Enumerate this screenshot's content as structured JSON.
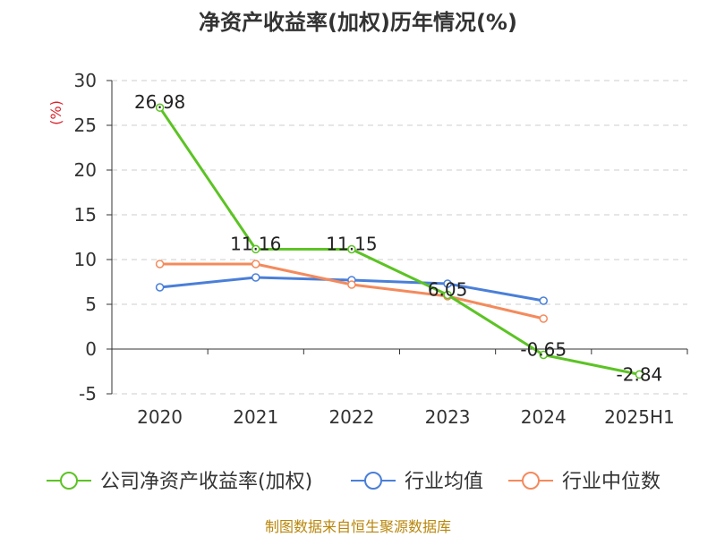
{
  "chart_data": {
    "type": "line",
    "title": "净资产收益率(加权)历年情况(%)",
    "y_unit": "(%)",
    "categories": [
      "2020",
      "2021",
      "2022",
      "2023",
      "2024",
      "2025H1"
    ],
    "ylim": [
      -5,
      30
    ],
    "yticks": [
      30,
      25,
      20,
      15,
      10,
      5,
      0,
      -5
    ],
    "grid": true,
    "legend_position": "bottom",
    "series": [
      {
        "name": "公司净资产收益率(加权)",
        "color": "#5cc324",
        "values": [
          26.98,
          11.16,
          11.15,
          6.05,
          -0.65,
          -2.84
        ],
        "labels": [
          "26.98",
          "11.16",
          "11.15",
          "6.05",
          "-0.65",
          "-2.84"
        ]
      },
      {
        "name": "行业均值",
        "color": "#4a7fd8",
        "values": [
          6.9,
          8.0,
          7.7,
          7.3,
          5.4,
          null
        ]
      },
      {
        "name": "行业中位数",
        "color": "#f48a5c",
        "values": [
          9.5,
          9.5,
          7.2,
          5.9,
          3.4,
          null
        ]
      }
    ]
  },
  "source_text": "制图数据来自恒生聚源数据库"
}
